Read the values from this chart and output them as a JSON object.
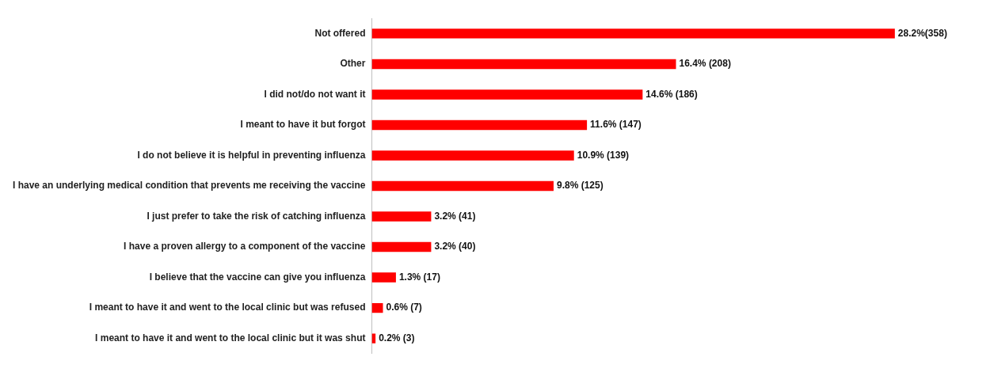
{
  "chart_data": {
    "type": "bar",
    "orientation": "horizontal",
    "categories": [
      "Not offered",
      "Other",
      "I did not/do not want it",
      "I meant to have it but forgot",
      "I do not believe it is helpful in preventing influenza",
      "I have an underlying medical condition that prevents me receiving the vaccine",
      "I just prefer to take the risk of catching influenza",
      "I have a proven allergy to a component of the vaccine",
      "I believe that the vaccine can give you influenza",
      "I meant to have it and went to the local clinic but was refused",
      "I meant to have it and went to the local clinic but it was shut"
    ],
    "values": [
      28.2,
      16.4,
      14.6,
      11.6,
      10.9,
      9.8,
      3.2,
      3.2,
      1.3,
      0.6,
      0.2
    ],
    "value_labels": [
      "28.2%(358)",
      "16.4% (208)",
      "14.6% (186)",
      "11.6% (147)",
      "10.9% (139)",
      "9.8% (125)",
      "3.2% (41)",
      "3.2% (40)",
      "1.3% (17)",
      "0.6% (7)",
      "0.2% (3)"
    ],
    "color": "#ff0000",
    "grid": false,
    "legend": false,
    "tick_labels": "y"
  }
}
